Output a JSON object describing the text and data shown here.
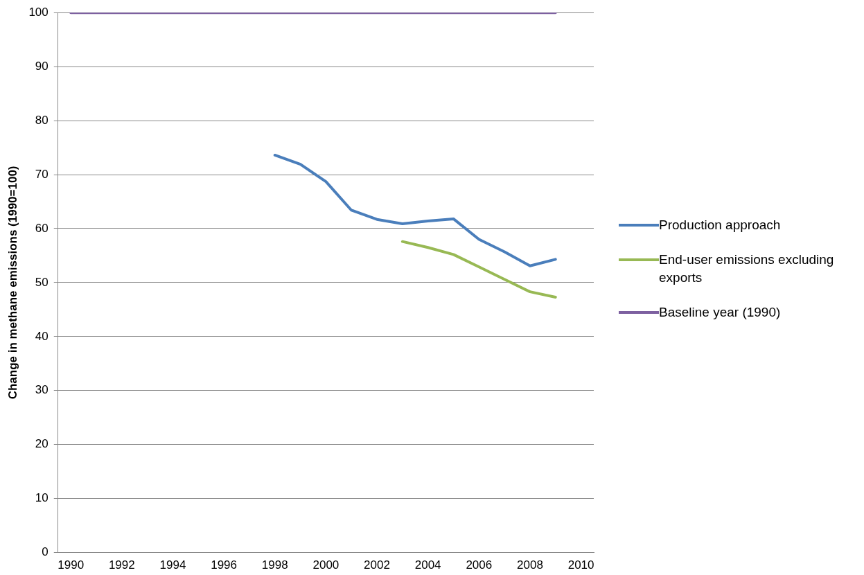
{
  "chart_data": {
    "type": "line",
    "ylabel": "Change in methane emissions (1990=100)",
    "categories": [
      "1990",
      null,
      "1992",
      null,
      "1994",
      null,
      "1996",
      null,
      "1998",
      null,
      "2000",
      null,
      "2002",
      null,
      "2004",
      null,
      "2006",
      null,
      "2008",
      null,
      "2010"
    ],
    "series": [
      {
        "name": "Production approach",
        "color": "#4a7ebb",
        "values": [
          null,
          null,
          null,
          null,
          null,
          null,
          null,
          null,
          73.6,
          71.9,
          68.7,
          63.4,
          61.7,
          60.9,
          61.4,
          61.8,
          58.0,
          55.7,
          53.1,
          54.3,
          null
        ]
      },
      {
        "name": "End-user emissions excluding exports",
        "color": "#98b954",
        "values": [
          null,
          null,
          null,
          null,
          null,
          null,
          null,
          null,
          null,
          null,
          null,
          null,
          null,
          57.6,
          56.5,
          55.2,
          52.9,
          50.6,
          48.3,
          47.3,
          null
        ]
      },
      {
        "name": "Baseline year (1990)",
        "color": "#7d60a0",
        "values": [
          100,
          100,
          100,
          100,
          100,
          100,
          100,
          100,
          100,
          100,
          100,
          100,
          100,
          100,
          100,
          100,
          100,
          100,
          100,
          100,
          null
        ]
      }
    ],
    "ylim": [
      0,
      100
    ],
    "yticks": [
      0,
      10,
      20,
      30,
      40,
      50,
      60,
      70,
      80,
      90,
      100
    ],
    "grid": "y",
    "legend": "right",
    "marker": "none",
    "line_style": "solid"
  }
}
